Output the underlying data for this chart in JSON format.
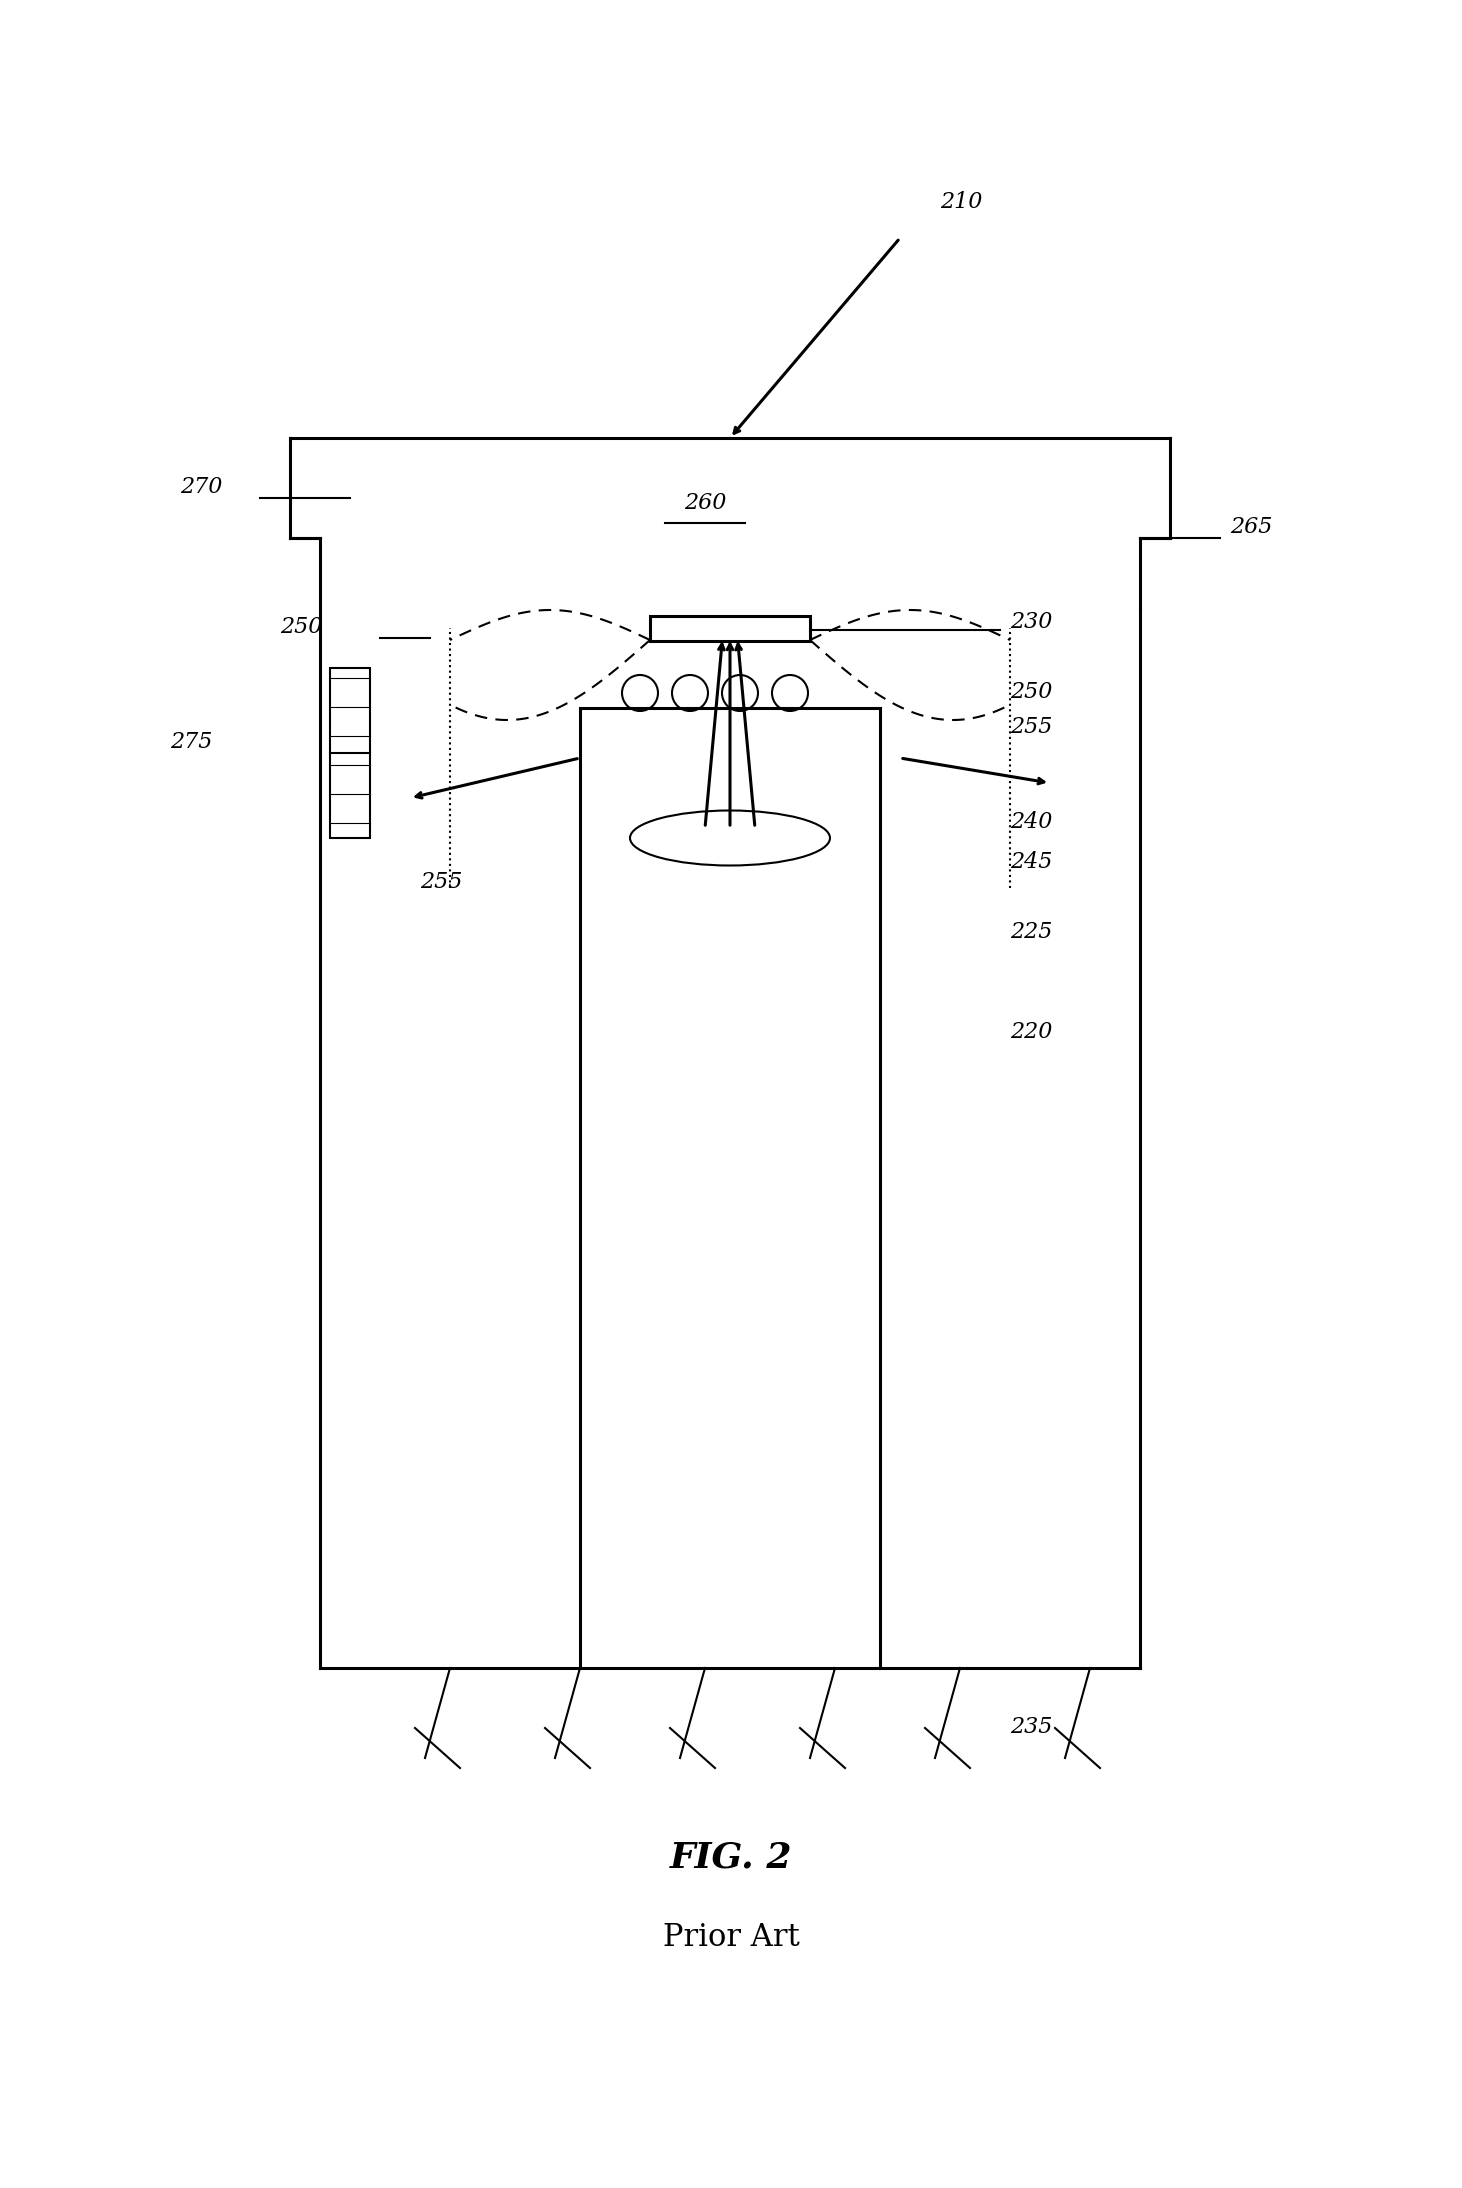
{
  "title": "FIG. 2",
  "subtitle": "Prior Art",
  "label_210": "210",
  "label_220": "220",
  "label_225": "225",
  "label_230": "230",
  "label_235": "235",
  "label_240": "240",
  "label_245": "245",
  "label_250a": "250",
  "label_250b": "250",
  "label_255a": "255",
  "label_255b": "255",
  "label_260": "260",
  "label_265": "265",
  "label_270": "270",
  "label_275": "275",
  "bg_color": "#ffffff",
  "line_color": "#000000",
  "lw_main": 2.2,
  "lw_thin": 1.5
}
